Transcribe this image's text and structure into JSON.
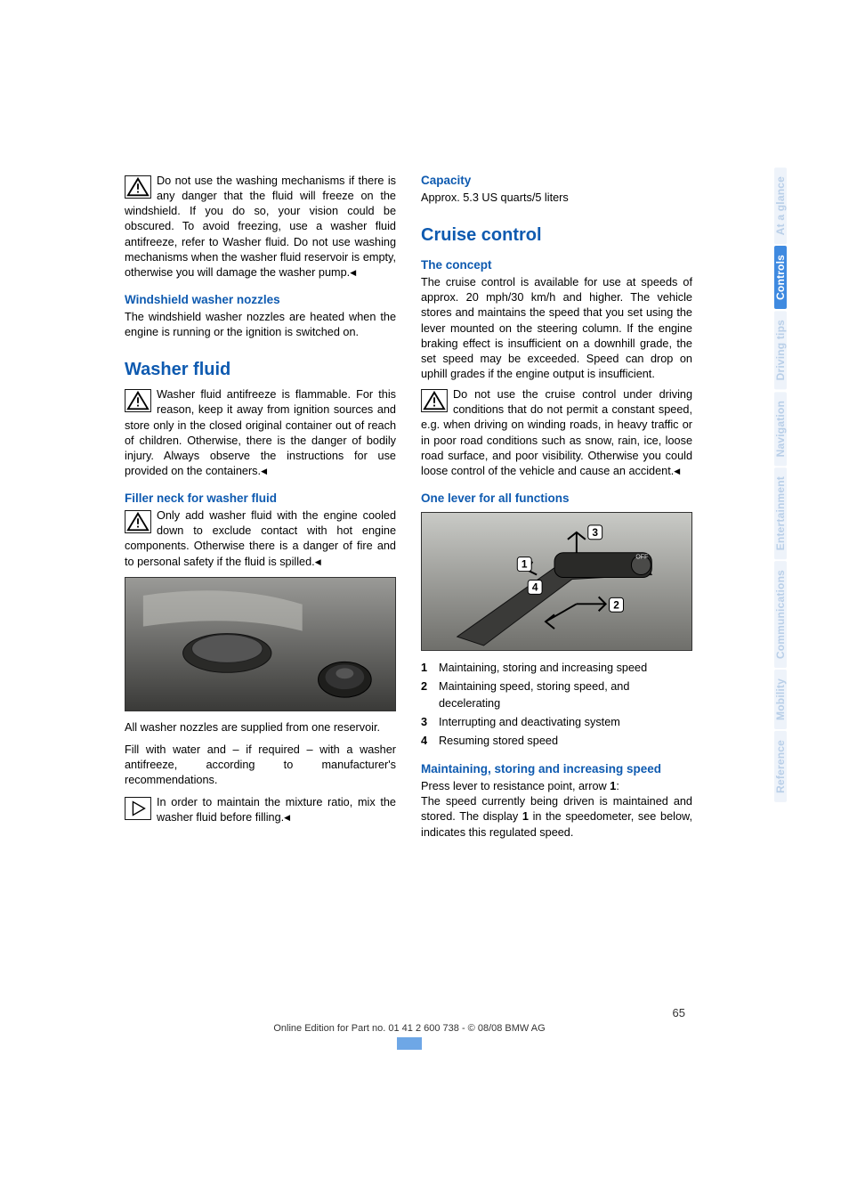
{
  "left": {
    "warn1": "Do not use the washing mechanisms if there is any danger that the fluid will freeze on the windshield. If you do so, your vision could be obscured. To avoid freezing, use a washer fluid antifreeze, refer to Washer fluid. Do not use washing mechanisms when the washer fluid reservoir is empty, otherwise you will damage the washer pump.",
    "sub1": "Windshield washer nozzles",
    "p1": "The windshield washer nozzles are heated when the engine is running or the ignition is switched on.",
    "head1": "Washer fluid",
    "warn2": "Washer fluid antifreeze is flammable. For this reason, keep it away from ignition sources and store only in the closed original container out of reach of children. Otherwise, there is the danger of bodily injury. Always observe the instructions for use provided on the containers.",
    "sub2": "Filler neck for washer fluid",
    "warn3": "Only add washer fluid with the engine cooled down to exclude contact with hot engine components. Otherwise there is a danger of fire and to personal safety if the fluid is spilled.",
    "p2": "All washer nozzles are supplied from one reservoir.",
    "p3": "Fill with water and – if required – with a washer antifreeze, according to manufacturer's recommendations.",
    "tip1": "In order to maintain the mixture ratio, mix the washer fluid before filling."
  },
  "right": {
    "sub1": "Capacity",
    "p1": "Approx. 5.3 US quarts/5 liters",
    "head1": "Cruise control",
    "sub2": "The concept",
    "p2": "The cruise control is available for use at speeds of approx. 20 mph/30 km/h and higher. The vehicle stores and maintains the speed that you set using the lever mounted on the steering column. If the engine braking effect is insufficient on a downhill grade, the set speed may be exceeded. Speed can drop on uphill grades if the engine output is insufficient.",
    "warn1": "Do not use the cruise control under driving conditions that do not permit a constant speed, e.g. when driving on winding roads, in heavy traffic or in poor road conditions such as snow, rain, ice, loose road surface, and poor visibility. Otherwise you could loose control of the vehicle and cause an accident.",
    "sub3": "One lever for all functions",
    "list": [
      {
        "n": "1",
        "t": "Maintaining, storing and increasing speed"
      },
      {
        "n": "2",
        "t": "Maintaining speed, storing speed, and decelerating"
      },
      {
        "n": "3",
        "t": "Interrupting and deactivating system"
      },
      {
        "n": "4",
        "t": "Resuming stored speed"
      }
    ],
    "sub4": "Maintaining, storing and increasing speed",
    "p3a": "Press lever to resistance point, arrow ",
    "p3b": "1",
    "p3c": ":",
    "p4a": "The speed currently being driven is maintained and stored. The display ",
    "p4b": "1",
    "p4c": " in the speedometer, see below, indicates this regulated speed."
  },
  "tabs": [
    {
      "label": "At a glance",
      "active": false
    },
    {
      "label": "Controls",
      "active": true
    },
    {
      "label": "Driving tips",
      "active": false
    },
    {
      "label": "Navigation",
      "active": false
    },
    {
      "label": "Entertainment",
      "active": false
    },
    {
      "label": "Communications",
      "active": false
    },
    {
      "label": "Mobility",
      "active": false
    },
    {
      "label": "Reference",
      "active": false
    }
  ],
  "footer": {
    "page": "65",
    "line": "Online Edition for Part no. 01 41 2 600 738 - © 08/08 BMW AG"
  },
  "colors": {
    "blue": "#0e5ab0",
    "tab_active_bg": "#3f8ae0",
    "tab_inactive_bg": "#eef3fa",
    "tab_inactive_fg": "#b9cfe8"
  }
}
